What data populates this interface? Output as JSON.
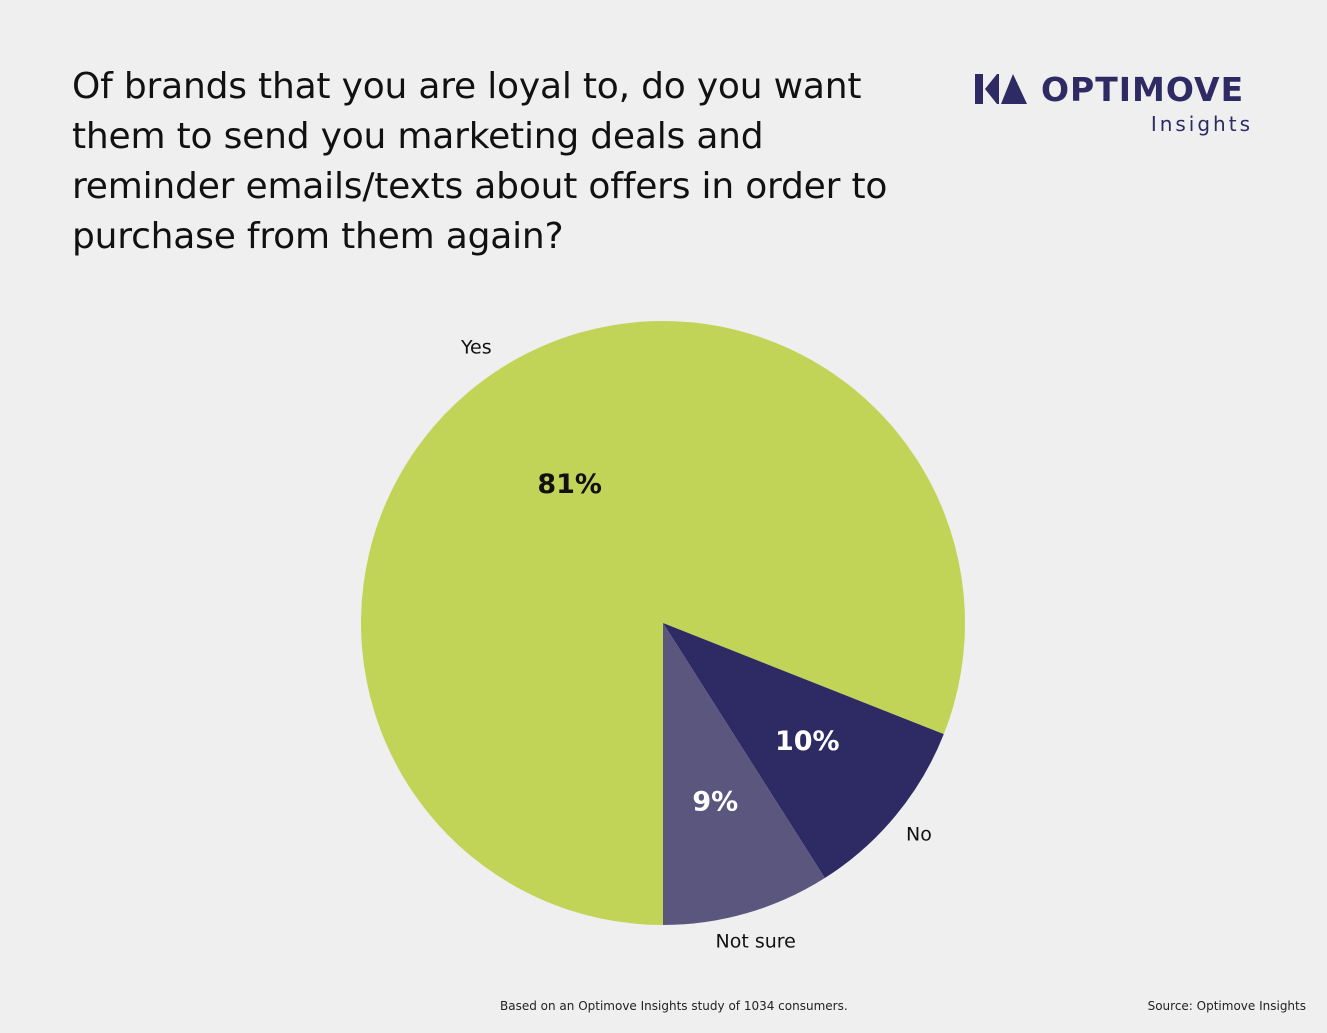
{
  "title": "Of brands that you are loyal to, do you want them to send you marketing deals and reminder emails/texts about offers in order to purchase from them again?",
  "logo": {
    "wordmark": "OPTIMOVE",
    "subtitle": "Insights",
    "color": "#2e2a64"
  },
  "chart_data": {
    "type": "pie",
    "title": "Of brands that you are loyal to, do you want them to send you marketing deals and reminder emails/texts about offers in order to purchase from them again?",
    "categories": [
      "Yes",
      "No",
      "Not sure"
    ],
    "values": [
      81,
      10,
      9
    ],
    "value_labels": [
      "81%",
      "10%",
      "9%"
    ],
    "colors": [
      "#c2d458",
      "#2e2a64",
      "#5b567e"
    ],
    "value_label_colors": [
      "#111111",
      "#ffffff",
      "#ffffff"
    ],
    "start": "6 o'clock, clockwise"
  },
  "footer": {
    "note": "Based on an Optimove Insights study of 1034 consumers.",
    "source": "Source: Optimove Insights"
  }
}
